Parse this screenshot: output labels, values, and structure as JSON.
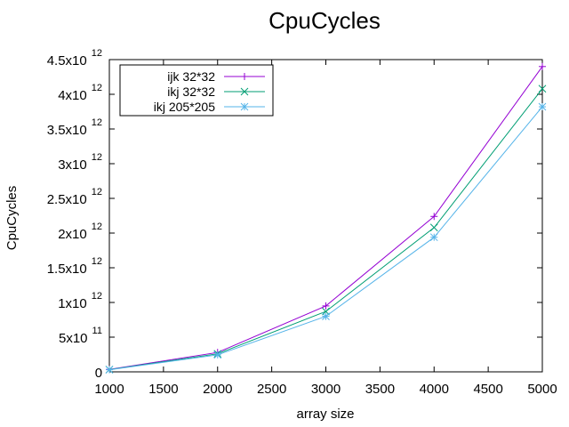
{
  "chart_data": {
    "type": "line",
    "title": "CpuCycles",
    "xlabel": "array size",
    "ylabel": "CpuCycles",
    "xlim": [
      1000,
      5000
    ],
    "ylim": [
      0,
      4500000000000
    ],
    "grid": false,
    "legend_position": "top-left",
    "x_ticks": [
      {
        "value": 1000,
        "label": "1000"
      },
      {
        "value": 1500,
        "label": "1500"
      },
      {
        "value": 2000,
        "label": "2000"
      },
      {
        "value": 2500,
        "label": "2500"
      },
      {
        "value": 3000,
        "label": "3000"
      },
      {
        "value": 3500,
        "label": "3500"
      },
      {
        "value": 4000,
        "label": "4000"
      },
      {
        "value": 4500,
        "label": "4500"
      },
      {
        "value": 5000,
        "label": "5000"
      }
    ],
    "y_ticks": [
      {
        "value": 0,
        "label": "0",
        "exp": ""
      },
      {
        "value": 500000000000,
        "label": "5x10",
        "exp": "11"
      },
      {
        "value": 1000000000000,
        "label": "1x10",
        "exp": "12"
      },
      {
        "value": 1500000000000,
        "label": "1.5x10",
        "exp": "12"
      },
      {
        "value": 2000000000000,
        "label": "2x10",
        "exp": "12"
      },
      {
        "value": 2500000000000,
        "label": "2.5x10",
        "exp": "12"
      },
      {
        "value": 3000000000000,
        "label": "3x10",
        "exp": "12"
      },
      {
        "value": 3500000000000,
        "label": "3.5x10",
        "exp": "12"
      },
      {
        "value": 4000000000000,
        "label": "4x10",
        "exp": "12"
      },
      {
        "value": 4500000000000,
        "label": "4.5x10",
        "exp": "12"
      }
    ],
    "x": [
      1000,
      2000,
      3000,
      4000,
      5000
    ],
    "series": [
      {
        "name": "ijk 32*32",
        "color": "#9400d3",
        "marker": "plus",
        "values": [
          35000000000,
          280000000000,
          950000000000,
          2240000000000,
          4400000000000
        ]
      },
      {
        "name": "ikj 32*32",
        "color": "#009e73",
        "marker": "cross",
        "values": [
          32000000000,
          260000000000,
          870000000000,
          2080000000000,
          4080000000000
        ]
      },
      {
        "name": "ikj 205*205",
        "color": "#56b4e9",
        "marker": "star",
        "values": [
          30000000000,
          245000000000,
          800000000000,
          1940000000000,
          3820000000000
        ]
      }
    ]
  }
}
